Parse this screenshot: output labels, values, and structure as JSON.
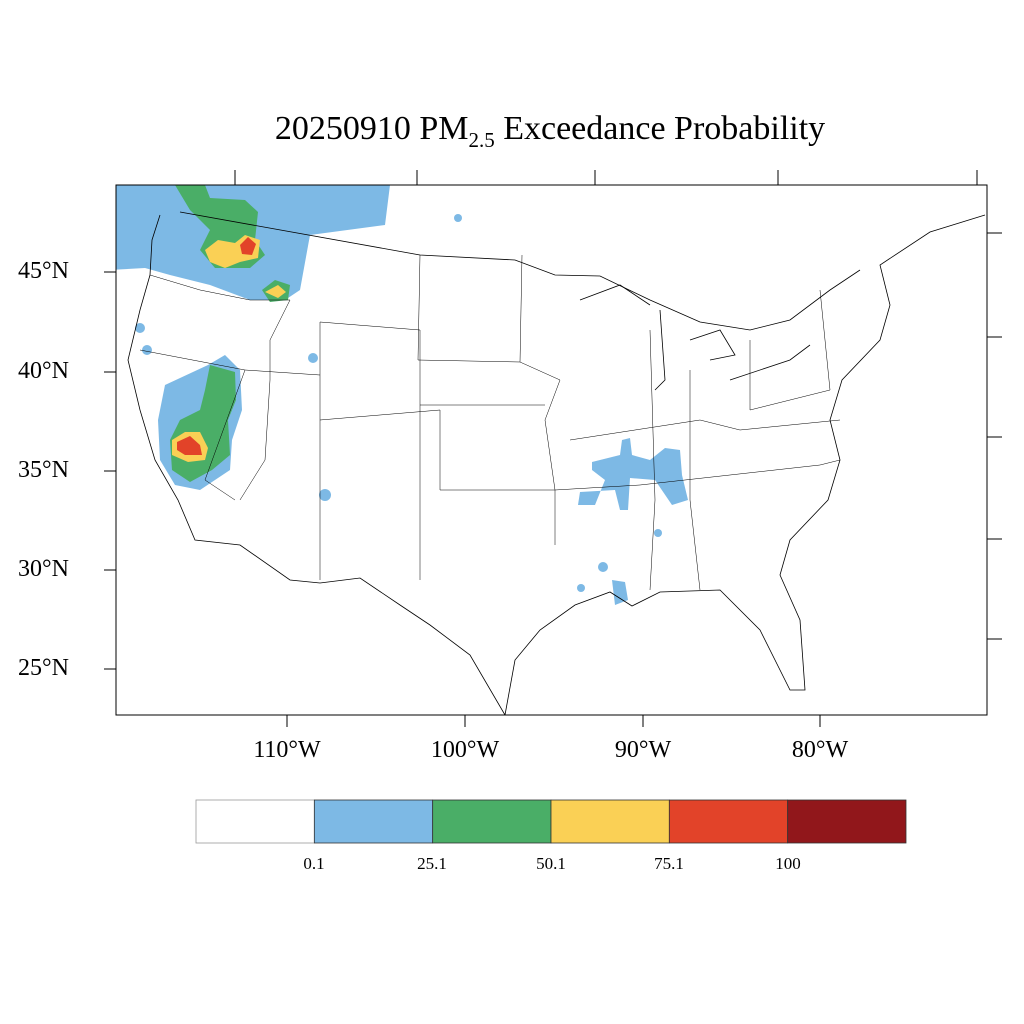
{
  "title": {
    "prefix": "20250910 PM",
    "subscript": "2.5",
    "suffix": " Exceedance Probability"
  },
  "lat_labels": [
    "45°N",
    "40°N",
    "35°N",
    "30°N",
    "25°N"
  ],
  "lon_labels": [
    "110°W",
    "100°W",
    "90°W",
    "80°W"
  ],
  "colorbar": {
    "colors": [
      "#ffffff",
      "#7db9e5",
      "#4aae67",
      "#fad055",
      "#e24329",
      "#91171b"
    ],
    "labels": [
      "0.1",
      "25.1",
      "50.1",
      "75.1",
      "100"
    ]
  },
  "map_data": {
    "type": "filled-contour",
    "levels": [
      0.1,
      25.1,
      50.1,
      75.1,
      100
    ],
    "highlights": [
      "Pacific Northwest / N. Idaho: up to 75.1-100",
      "Central California / Sierra Nevada: up to 75.1-100",
      "Mid-South (Arkansas, Tennessee, Mississippi, Louisiana): 0.1-25.1"
    ]
  }
}
